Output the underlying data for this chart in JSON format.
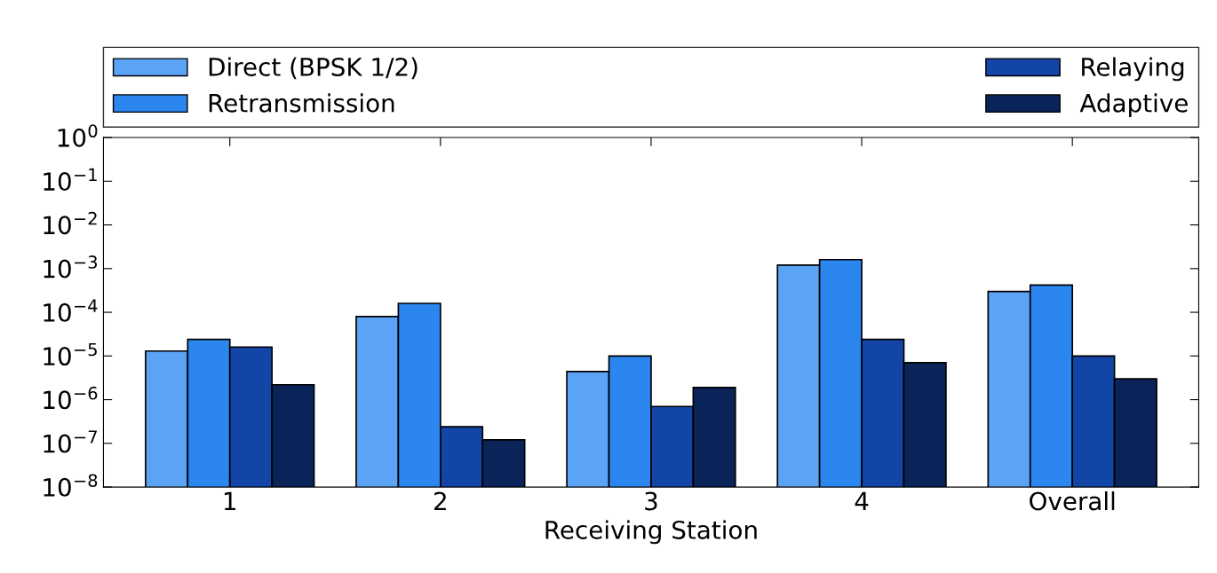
{
  "chart_data": {
    "type": "bar",
    "xlabel": "Receiving Station",
    "categories": [
      "1",
      "2",
      "3",
      "4",
      "Overall"
    ],
    "series": [
      {
        "name": "Direct (BPSK 1/2)",
        "color": "#5ba3f5",
        "values": [
          1.3e-05,
          8e-05,
          4.4e-06,
          0.0012,
          0.0003
        ]
      },
      {
        "name": "Retransmission",
        "color": "#2b86f0",
        "values": [
          2.4e-05,
          0.00016,
          1e-05,
          0.0016,
          0.00042
        ]
      },
      {
        "name": "Relaying",
        "color": "#1245a5",
        "values": [
          1.6e-05,
          2.4e-07,
          7e-07,
          2.4e-05,
          1e-05
        ]
      },
      {
        "name": "Adaptive",
        "color": "#0a2459",
        "values": [
          2.2e-06,
          1.2e-07,
          1.9e-06,
          7e-06,
          3e-06
        ]
      }
    ],
    "log": "y",
    "ylim": [
      1e-08,
      1
    ],
    "yticks": [
      {
        "value": 1e-08,
        "label": "10$^{−8}$"
      },
      {
        "value": 1e-07,
        "label": "10$^{−7}$"
      },
      {
        "value": 1e-06,
        "label": "10$^{−6}$"
      },
      {
        "value": 1e-05,
        "label": "10$^{−5}$"
      },
      {
        "value": 0.0001,
        "label": "10$^{−4}$"
      },
      {
        "value": 0.001,
        "label": "10$^{−3}$"
      },
      {
        "value": 0.01,
        "label": "10$^{−2}$"
      },
      {
        "value": 0.1,
        "label": "10$^{−1}$"
      },
      {
        "value": 1,
        "label": "10$^{0}$"
      }
    ],
    "grid": false,
    "legend": "top"
  }
}
